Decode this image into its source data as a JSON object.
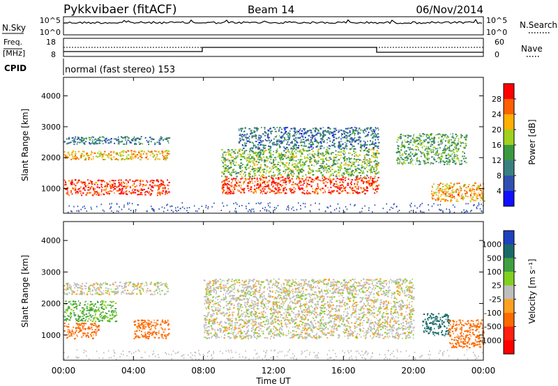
{
  "header": {
    "station": "Pykkvibaer (fitACF)",
    "beam": "Beam 14",
    "date": "06/Nov/2014"
  },
  "strip": {
    "nsky_label": "N.Sky",
    "nsky_ticks": [
      "10^5",
      "10^0"
    ],
    "nsearch_label": "N.Search",
    "nsearch_ticks": [
      "10^5",
      "10^0"
    ],
    "freq_label": "Freq.",
    "freq_unit": "[MHz]",
    "freq_ticks": [
      "18",
      "8"
    ],
    "nave_label": "Nave",
    "nave_ticks": [
      "60",
      "0"
    ],
    "cpid_label": "CPID",
    "cpid_value": "normal (fast stereo) 153"
  },
  "axes": {
    "ylabel": "Slant Range [km]",
    "yticks": [
      "4000",
      "3000",
      "2000",
      "1000"
    ],
    "xticks": [
      "00:00",
      "04:00",
      "08:00",
      "12:00",
      "16:00",
      "20:00",
      "00:00"
    ],
    "xlabel": "Time UT"
  },
  "power_scale": {
    "label": "Power [dB]",
    "ticks": [
      "28",
      "24",
      "20",
      "16",
      "12",
      "8",
      "4"
    ],
    "colors": [
      "#ff0000",
      "#ff6000",
      "#ffb000",
      "#a0d020",
      "#3a9a40",
      "#3a8080",
      "#3050b0",
      "#1010ff"
    ]
  },
  "velocity_scale": {
    "label": "Velocity [m s⁻¹]",
    "ticks": [
      "1000",
      "500",
      "100",
      "25",
      "-25",
      "-100",
      "-500",
      "-1000"
    ],
    "colors": [
      "#2040c0",
      "#1a6a6a",
      "#40a040",
      "#80d020",
      "#bebebe",
      "#ffa020",
      "#ff6a00",
      "#ff2010",
      "#ff0000"
    ]
  },
  "chart_data": [
    {
      "type": "heatmap",
      "title": "Power",
      "ylabel": "Slant Range [km]",
      "xlabel": "Time UT",
      "xlim": [
        0,
        24
      ],
      "ylim": [
        200,
        4600
      ],
      "colorbar_label": "Power [dB]",
      "colorbar_range": [
        3,
        30
      ],
      "regions": [
        {
          "t": [
            0,
            6
          ],
          "r": [
            800,
            1300
          ],
          "level": 27
        },
        {
          "t": [
            0,
            6
          ],
          "r": [
            1950,
            2250
          ],
          "level": 21
        },
        {
          "t": [
            0,
            6
          ],
          "r": [
            2450,
            2700
          ],
          "level": 11
        },
        {
          "t": [
            9,
            18
          ],
          "r": [
            850,
            1400
          ],
          "level": 27
        },
        {
          "t": [
            9,
            18
          ],
          "r": [
            1400,
            2300
          ],
          "level": 16
        },
        {
          "t": [
            10,
            18
          ],
          "r": [
            2300,
            3000
          ],
          "level": 10
        },
        {
          "t": [
            19,
            23
          ],
          "r": [
            1800,
            2800
          ],
          "level": 14
        },
        {
          "t": [
            21,
            24
          ],
          "r": [
            600,
            1200
          ],
          "level": 22
        }
      ]
    },
    {
      "type": "heatmap",
      "title": "Velocity",
      "ylabel": "Slant Range [km]",
      "xlabel": "Time UT",
      "xlim": [
        0,
        24
      ],
      "ylim": [
        200,
        4600
      ],
      "colorbar_label": "Velocity [m s⁻¹]",
      "colorbar_range": [
        -1000,
        1000
      ],
      "regions": [
        {
          "t": [
            0,
            6
          ],
          "r": [
            2300,
            2700
          ],
          "v": 0
        },
        {
          "t": [
            0,
            2
          ],
          "r": [
            900,
            1400
          ],
          "v": -150
        },
        {
          "t": [
            0,
            3
          ],
          "r": [
            1450,
            2100
          ],
          "v": 70
        },
        {
          "t": [
            4,
            6
          ],
          "r": [
            900,
            1500
          ],
          "v": -150
        },
        {
          "t": [
            8,
            20
          ],
          "r": [
            900,
            2800
          ],
          "v": 0
        },
        {
          "t": [
            20.5,
            22
          ],
          "r": [
            1000,
            1700
          ],
          "v": 500
        },
        {
          "t": [
            22,
            24
          ],
          "r": [
            600,
            1500
          ],
          "v": -200
        }
      ]
    }
  ]
}
